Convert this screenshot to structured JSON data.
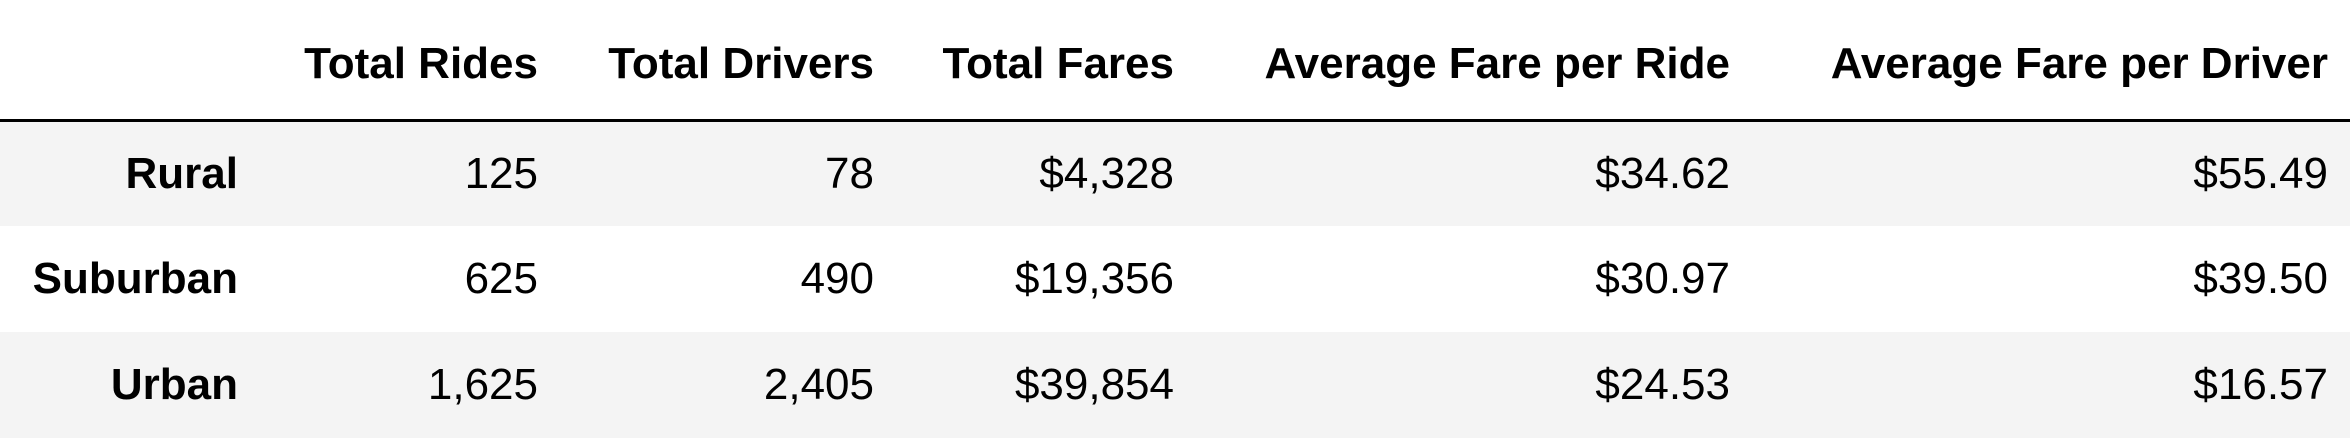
{
  "table": {
    "index_header": "",
    "columns": [
      "Total Rides",
      "Total Drivers",
      "Total Fares",
      "Average Fare per Ride",
      "Average Fare per Driver"
    ],
    "rows": [
      {
        "label": "Rural",
        "cells": [
          "125",
          "78",
          "$4,328",
          "$34.62",
          "$55.49"
        ]
      },
      {
        "label": "Suburban",
        "cells": [
          "625",
          "490",
          "$19,356",
          "$30.97",
          "$39.50"
        ]
      },
      {
        "label": "Urban",
        "cells": [
          "1,625",
          "2,405",
          "$39,854",
          "$24.53",
          "$16.57"
        ]
      }
    ]
  },
  "colors": {
    "striped_row": "#f4f4f4",
    "header_rule": "#000000"
  }
}
